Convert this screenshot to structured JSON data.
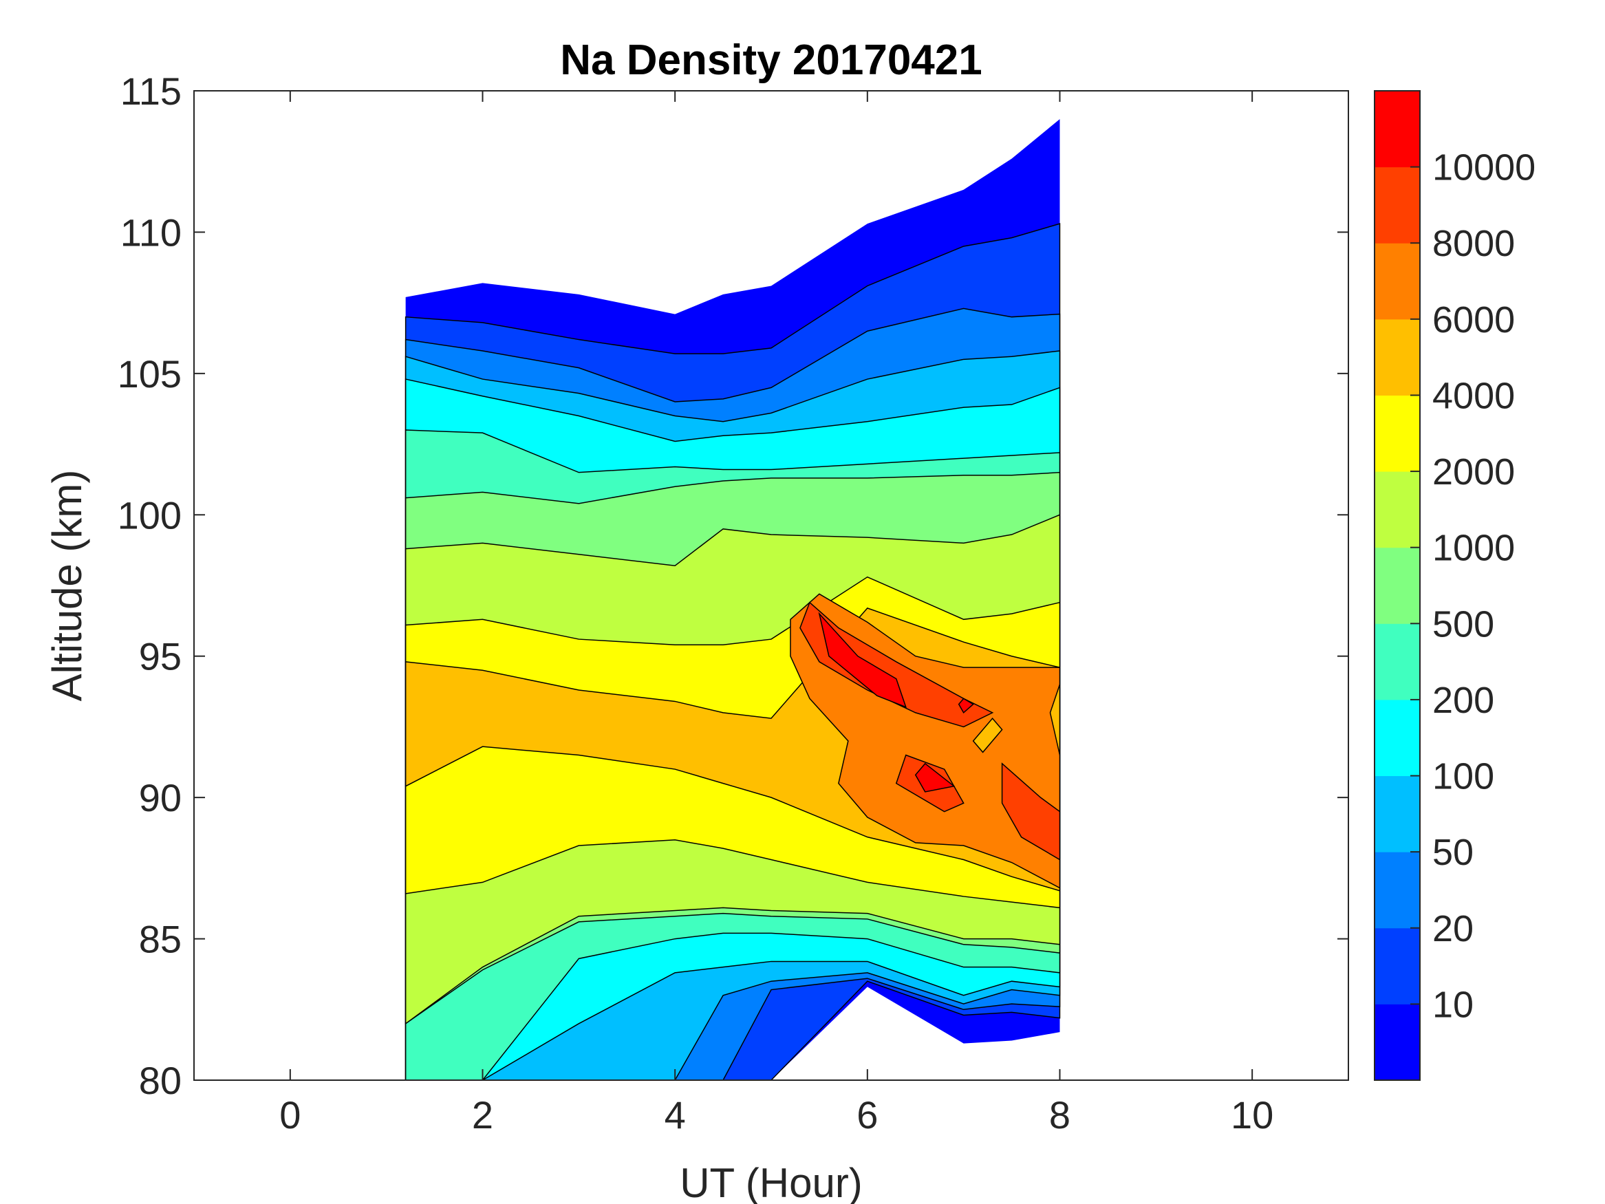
{
  "chart_data": {
    "type": "contourf",
    "title": "Na Density 20170421",
    "xlabel": "UT (Hour)",
    "ylabel": "Altitude (km)",
    "xlim": [
      -1,
      11
    ],
    "ylim": [
      80,
      115
    ],
    "xticks": [
      0,
      2,
      4,
      6,
      8,
      10
    ],
    "yticks": [
      80,
      85,
      90,
      95,
      100,
      105,
      110,
      115
    ],
    "xtick_labels": [
      "0",
      "2",
      "4",
      "6",
      "8",
      "10"
    ],
    "ytick_labels": [
      "80",
      "85",
      "90",
      "95",
      "100",
      "105",
      "110",
      "115"
    ],
    "colorbar": {
      "levels": [
        0,
        10,
        20,
        50,
        100,
        200,
        500,
        1000,
        2000,
        4000,
        6000,
        8000,
        10000
      ],
      "tick_labels": [
        "10",
        "20",
        "50",
        "100",
        "200",
        "500",
        "1000",
        "2000",
        "4000",
        "6000",
        "8000",
        "10000"
      ],
      "colors": [
        "#0000FF",
        "#0040FF",
        "#0080FF",
        "#00BFFF",
        "#00FFFF",
        "#40FFBF",
        "#80FF80",
        "#BFFF40",
        "#FFFF00",
        "#FFBF00",
        "#FF8000",
        "#FF4000",
        "#FF0000"
      ]
    },
    "times": [
      1.2,
      2,
      3,
      4,
      4.5,
      5,
      6,
      7,
      7.5,
      8
    ],
    "layers": [
      {
        "level": 0,
        "upper": [
          107.7,
          108.2,
          107.8,
          107.1,
          107.8,
          108.1,
          110.3,
          111.5,
          112.6,
          114
        ],
        "lower": [
          80,
          80,
          80,
          80,
          80,
          80,
          83.3,
          81.3,
          81.4,
          81.7
        ]
      },
      {
        "level": 10,
        "upper": [
          107,
          106.8,
          106.2,
          105.7,
          105.7,
          105.9,
          108.1,
          109.5,
          109.8,
          110.3
        ],
        "lower": [
          80,
          80,
          80,
          80,
          80,
          80,
          83.5,
          82.3,
          82.4,
          82.2
        ]
      },
      {
        "level": 20,
        "upper": [
          106.2,
          105.8,
          105.2,
          104,
          104.1,
          104.5,
          106.5,
          107.3,
          107,
          107.1
        ],
        "lower": [
          80,
          80,
          80,
          80,
          80,
          83.2,
          83.6,
          82.5,
          82.7,
          82.6
        ]
      },
      {
        "level": 50,
        "upper": [
          105.6,
          104.8,
          104.3,
          103.5,
          103.3,
          103.6,
          104.8,
          105.5,
          105.6,
          105.8
        ],
        "lower": [
          80,
          80,
          80,
          80,
          83,
          83.5,
          83.8,
          82.7,
          83.2,
          83.0
        ]
      },
      {
        "level": 100,
        "upper": [
          104.8,
          104.2,
          103.5,
          102.6,
          102.8,
          102.9,
          103.3,
          103.8,
          103.9,
          104.5
        ],
        "lower": [
          80,
          80,
          82,
          83.8,
          84,
          84.2,
          84.2,
          83,
          83.5,
          83.3
        ]
      },
      {
        "level": 200,
        "upper": [
          103,
          102.9,
          101.5,
          101.7,
          101.6,
          101.6,
          101.8,
          102,
          102.1,
          102.2
        ],
        "lower": [
          80,
          80,
          84.3,
          85,
          85.2,
          85.2,
          85,
          84,
          84,
          83.8
        ]
      },
      {
        "level": 500,
        "upper": [
          100.6,
          100.8,
          100.4,
          101,
          101.2,
          101.3,
          101.3,
          101.4,
          101.4,
          101.5
        ],
        "lower": [
          82,
          83.9,
          85.6,
          85.8,
          85.9,
          85.8,
          85.7,
          84.8,
          84.7,
          84.5
        ]
      },
      {
        "level": 1000,
        "upper": [
          98.8,
          99,
          98.6,
          98.2,
          99.5,
          99.3,
          99.2,
          99,
          99.3,
          100
        ],
        "lower": [
          82,
          84,
          85.8,
          86,
          86.1,
          86,
          85.9,
          85,
          85,
          84.8
        ]
      },
      {
        "level": 2000,
        "upper": [
          96.1,
          96.3,
          95.6,
          95.4,
          95.4,
          95.6,
          97.8,
          96.3,
          96.5,
          96.9
        ],
        "lower": [
          86.6,
          87,
          88.3,
          88.5,
          88.2,
          87.8,
          87,
          86.5,
          86.3,
          86.1
        ]
      },
      {
        "level": 4000,
        "upper": [
          94.8,
          94.5,
          93.8,
          93.4,
          93,
          92.8,
          96.7,
          95.5,
          95,
          94.6
        ],
        "lower": [
          90.4,
          91.8,
          91.5,
          91,
          90.5,
          90,
          88.6,
          87.8,
          87.2,
          86.7
        ]
      }
    ],
    "blobs": [
      {
        "level": 6000,
        "points": [
          [
            5.2,
            96.3
          ],
          [
            5.5,
            97.2
          ],
          [
            6,
            96.2
          ],
          [
            6.5,
            95
          ],
          [
            7,
            94.6
          ],
          [
            8,
            94.6
          ],
          [
            8,
            86.8
          ],
          [
            7.5,
            87.7
          ],
          [
            7,
            88.3
          ],
          [
            6.5,
            88.4
          ],
          [
            6,
            89.3
          ],
          [
            5.7,
            90.5
          ],
          [
            5.8,
            92
          ],
          [
            5.4,
            93.5
          ],
          [
            5.2,
            95
          ]
        ]
      },
      {
        "level": 4000,
        "points": [
          [
            7.1,
            92
          ],
          [
            7.3,
            92.8
          ],
          [
            7.4,
            92.4
          ],
          [
            7.2,
            91.6
          ]
        ]
      },
      {
        "level": 4000,
        "points": [
          [
            8,
            94
          ],
          [
            7.9,
            93
          ],
          [
            8,
            91.5
          ]
        ]
      },
      {
        "level": 8000,
        "points": [
          [
            5.4,
            96.9
          ],
          [
            5.7,
            96
          ],
          [
            6.3,
            94.8
          ],
          [
            7,
            93.5
          ],
          [
            7.3,
            93
          ],
          [
            7,
            92.5
          ],
          [
            6.5,
            93
          ],
          [
            6,
            93.8
          ],
          [
            5.5,
            94.8
          ],
          [
            5.3,
            96
          ]
        ]
      },
      {
        "level": 8000,
        "points": [
          [
            6.4,
            91.5
          ],
          [
            6.8,
            91
          ],
          [
            7,
            89.8
          ],
          [
            6.8,
            89.5
          ],
          [
            6.3,
            90.5
          ]
        ]
      },
      {
        "level": 8000,
        "points": [
          [
            7.4,
            91.2
          ],
          [
            7.8,
            90
          ],
          [
            8,
            89.5
          ],
          [
            8,
            87.8
          ],
          [
            7.6,
            88.6
          ],
          [
            7.4,
            89.8
          ]
        ]
      },
      {
        "level": 10000,
        "points": [
          [
            5.5,
            96.5
          ],
          [
            5.9,
            95
          ],
          [
            6.3,
            94.2
          ],
          [
            6.4,
            93.2
          ],
          [
            6.1,
            93.6
          ],
          [
            5.6,
            95
          ]
        ]
      },
      {
        "level": 10000,
        "points": [
          [
            6.6,
            91.2
          ],
          [
            6.9,
            90.4
          ],
          [
            6.6,
            90.2
          ],
          [
            6.5,
            90.8
          ]
        ]
      },
      {
        "level": 10000,
        "points": [
          [
            7,
            93.5
          ],
          [
            7.1,
            93.3
          ],
          [
            7,
            93.0
          ],
          [
            6.95,
            93.3
          ]
        ]
      }
    ]
  }
}
